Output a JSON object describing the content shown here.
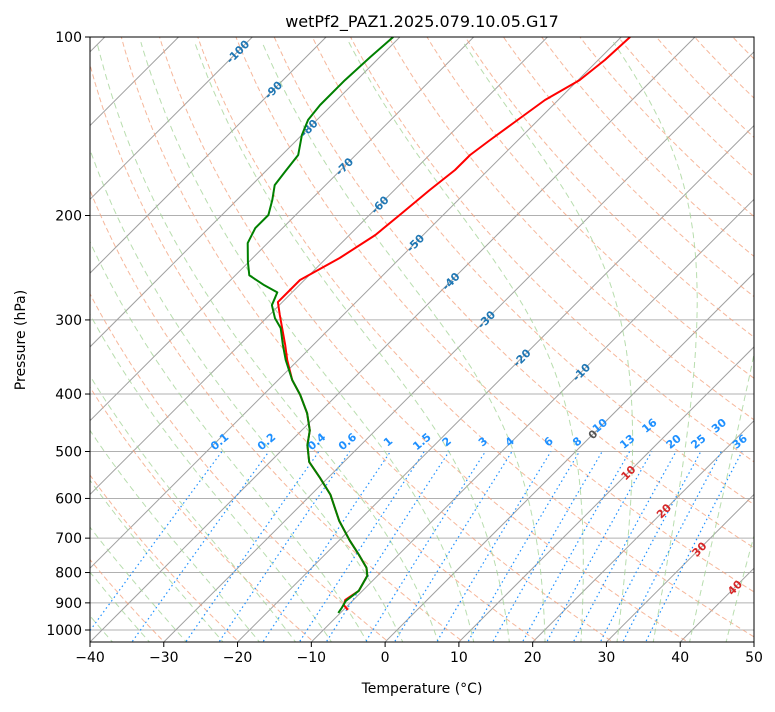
{
  "chart_data": {
    "type": "line",
    "subtype": "skew-t log-p diagram",
    "title": "wetPf2_PAZ1.2025.079.10.05.G17",
    "xlabel": "Temperature (°C)",
    "ylabel": "Pressure (hPa)",
    "xlim": [
      -40,
      50
    ],
    "ylim": [
      1050,
      100
    ],
    "x_ticks": [
      -40,
      -30,
      -20,
      -10,
      0,
      10,
      20,
      30,
      40,
      50
    ],
    "y_ticks": [
      100,
      200,
      300,
      400,
      500,
      600,
      700,
      800,
      900,
      1000
    ],
    "grid": true,
    "isotherm_labels": {
      "cold": [
        "-100",
        "-90",
        "-80",
        "-70",
        "-60",
        "-50",
        "-40",
        "-30",
        "-20",
        "-10"
      ],
      "zero": "0",
      "warm": [
        "10",
        "20",
        "30",
        "40"
      ]
    },
    "mixing_ratio_labels": [
      "0.1",
      "0.2",
      "0.4",
      "0.6",
      "1",
      "1.5",
      "2",
      "3",
      "4",
      "6",
      "8",
      "10",
      "13",
      "16",
      "20",
      "25",
      "30",
      "36"
    ],
    "series": [
      {
        "name": "temperature",
        "color": "#ff0000",
        "pressure": [
          100,
          109.3,
          118.2,
          127.7,
          139.1,
          149.2,
          158.1,
          167.6,
          181.1,
          199.6,
          215.8,
          235.9,
          256.9,
          272.3,
          279.9,
          294.3,
          330.7,
          350.5,
          378.8,
          401.4,
          430.8,
          460.6,
          488.0,
          520.6,
          553.6,
          591.0,
          653.8,
          705.8,
          749.0,
          785.0,
          809.8,
          858.9,
          890,
          908,
          925
        ],
        "temperature": [
          -48.8,
          -49.1,
          -49.8,
          -51.8,
          -52.9,
          -53.8,
          -54.5,
          -54.5,
          -55.2,
          -55.9,
          -56.5,
          -58.2,
          -60.6,
          -60.6,
          -60.6,
          -58.6,
          -53.8,
          -51.5,
          -48.1,
          -45.0,
          -41.6,
          -38.9,
          -37.2,
          -34.7,
          -31.1,
          -27.4,
          -22.7,
          -18.6,
          -15.2,
          -12.6,
          -11.4,
          -10.5,
          -11.1,
          -10.6,
          -9.4
        ]
      },
      {
        "name": "dewpoint",
        "color": "#008000",
        "pressure": [
          100,
          108.1,
          118.2,
          130.2,
          138,
          146.3,
          158.1,
          168.8,
          177.7,
          188.3,
          199.6,
          210.0,
          222.6,
          239.6,
          252.3,
          262.3,
          269.6,
          283.3,
          298.1,
          309.7,
          330.7,
          350.5,
          378.8,
          401.4,
          430.8,
          460.6,
          488.0,
          520.6,
          553.6,
          591.0,
          653.8,
          705.8,
          749.0,
          785.0,
          809.8,
          858.9,
          892.8,
          917.5,
          935.6
        ],
        "temperature": [
          -80.9,
          -81.3,
          -81.6,
          -81.6,
          -81.2,
          -80.0,
          -77.8,
          -77.3,
          -76.9,
          -75.2,
          -73.7,
          -73.7,
          -72.7,
          -70.1,
          -68.1,
          -64.7,
          -62.0,
          -61.0,
          -58.8,
          -56.7,
          -54.1,
          -51.7,
          -48.1,
          -45.0,
          -41.6,
          -38.9,
          -37.2,
          -34.7,
          -31.1,
          -27.4,
          -22.7,
          -18.6,
          -15.2,
          -12.6,
          -11.4,
          -10.5,
          -10.9,
          -10.5,
          -10.3
        ]
      }
    ],
    "colors": {
      "isotherm": "#a0a0a0",
      "dry_adiabat": "#f4a582",
      "moist_adiabat": "#a6d49a",
      "mixing_ratio": "#1e90ff",
      "cold_label": "#1f77b4",
      "zero_label": "#555555",
      "warm_label": "#d62728"
    }
  }
}
